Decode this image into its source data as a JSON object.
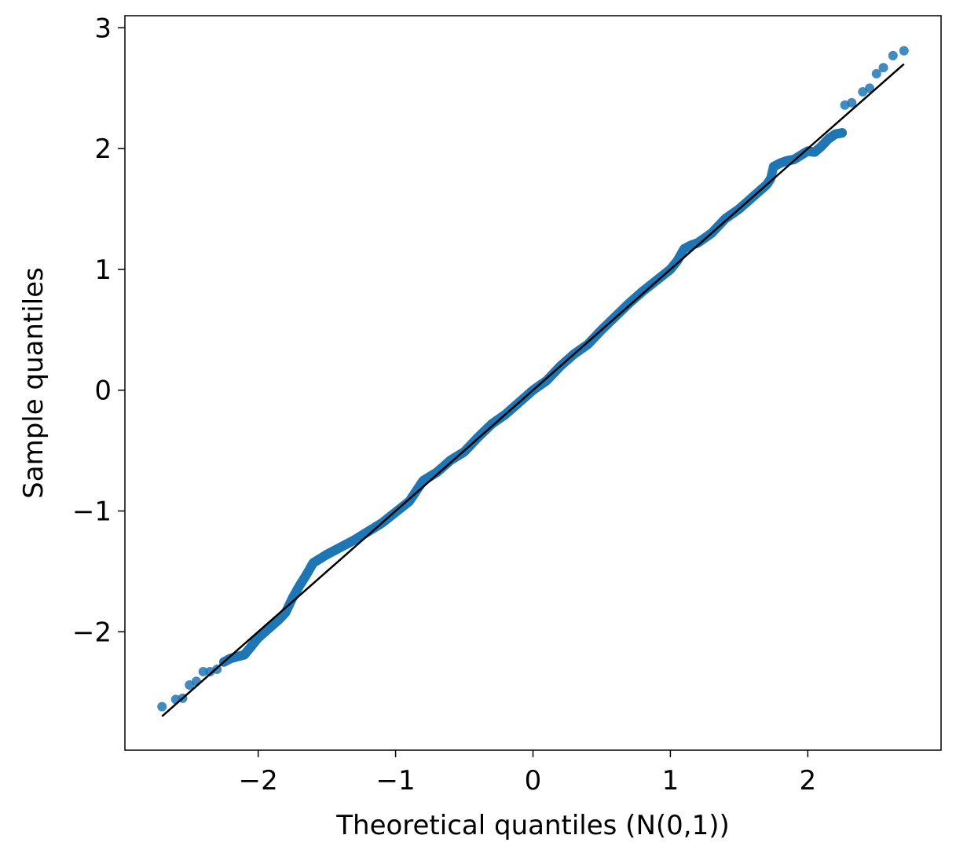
{
  "chart_data": {
    "type": "scatter",
    "title": "",
    "xlabel": "Theoretical quantiles (N(0,1))",
    "ylabel": "Sample quantiles",
    "xlim": [
      -2.97,
      2.97
    ],
    "ylim": [
      -2.98,
      3.1
    ],
    "x_ticks": [
      -2,
      -1,
      0,
      1,
      2
    ],
    "y_ticks": [
      -2,
      -1,
      0,
      1,
      2,
      3
    ],
    "x_tick_labels": [
      "−2",
      "−1",
      "0",
      "1",
      "2"
    ],
    "y_tick_labels": [
      "−2",
      "−1",
      "0",
      "1",
      "2",
      "3"
    ],
    "grid": false,
    "legend": "none",
    "colors": {
      "points": "#1f77b4",
      "reference_line": "#000000"
    },
    "series": [
      {
        "type": "scatter",
        "n_points": 1000,
        "anchors": [
          [
            -2.7,
            -2.62
          ],
          [
            -2.6,
            -2.56
          ],
          [
            -2.55,
            -2.55
          ],
          [
            -2.5,
            -2.44
          ],
          [
            -2.45,
            -2.41
          ],
          [
            -2.4,
            -2.33
          ],
          [
            -2.35,
            -2.33
          ],
          [
            -2.3,
            -2.31
          ],
          [
            -2.25,
            -2.25
          ],
          [
            -2.2,
            -2.22
          ],
          [
            -2.1,
            -2.19
          ],
          [
            -2.0,
            -2.05
          ],
          [
            -1.9,
            -1.95
          ],
          [
            -1.85,
            -1.9
          ],
          [
            -1.8,
            -1.84
          ],
          [
            -1.75,
            -1.72
          ],
          [
            -1.7,
            -1.62
          ],
          [
            -1.65,
            -1.53
          ],
          [
            -1.6,
            -1.43
          ],
          [
            -1.5,
            -1.36
          ],
          [
            -1.4,
            -1.3
          ],
          [
            -1.3,
            -1.24
          ],
          [
            -1.2,
            -1.17
          ],
          [
            -1.1,
            -1.1
          ],
          [
            -1.0,
            -1.01
          ],
          [
            -0.9,
            -0.92
          ],
          [
            -0.8,
            -0.75
          ],
          [
            -0.7,
            -0.68
          ],
          [
            -0.6,
            -0.58
          ],
          [
            -0.5,
            -0.51
          ],
          [
            -0.4,
            -0.39
          ],
          [
            -0.3,
            -0.28
          ],
          [
            -0.2,
            -0.2
          ],
          [
            -0.1,
            -0.1
          ],
          [
            0.0,
            0.0
          ],
          [
            0.1,
            0.08
          ],
          [
            0.2,
            0.2
          ],
          [
            0.3,
            0.3
          ],
          [
            0.4,
            0.38
          ],
          [
            0.5,
            0.5
          ],
          [
            0.6,
            0.61
          ],
          [
            0.7,
            0.72
          ],
          [
            0.8,
            0.82
          ],
          [
            0.9,
            0.91
          ],
          [
            1.0,
            1.0
          ],
          [
            1.05,
            1.07
          ],
          [
            1.1,
            1.17
          ],
          [
            1.15,
            1.2
          ],
          [
            1.2,
            1.22
          ],
          [
            1.3,
            1.3
          ],
          [
            1.4,
            1.42
          ],
          [
            1.5,
            1.5
          ],
          [
            1.6,
            1.6
          ],
          [
            1.7,
            1.7
          ],
          [
            1.73,
            1.75
          ],
          [
            1.75,
            1.85
          ],
          [
            1.8,
            1.88
          ],
          [
            1.85,
            1.9
          ],
          [
            1.9,
            1.91
          ],
          [
            2.0,
            1.98
          ],
          [
            2.05,
            1.97
          ],
          [
            2.1,
            2.02
          ],
          [
            2.15,
            2.08
          ],
          [
            2.2,
            2.12
          ],
          [
            2.25,
            2.13
          ],
          [
            2.27,
            2.36
          ],
          [
            2.32,
            2.38
          ],
          [
            2.4,
            2.47
          ],
          [
            2.45,
            2.5
          ],
          [
            2.5,
            2.62
          ],
          [
            2.55,
            2.67
          ],
          [
            2.62,
            2.77
          ],
          [
            2.7,
            2.81
          ]
        ]
      },
      {
        "type": "line",
        "x": [
          -2.7,
          2.7
        ],
        "y": [
          -2.7,
          2.7
        ]
      }
    ]
  }
}
